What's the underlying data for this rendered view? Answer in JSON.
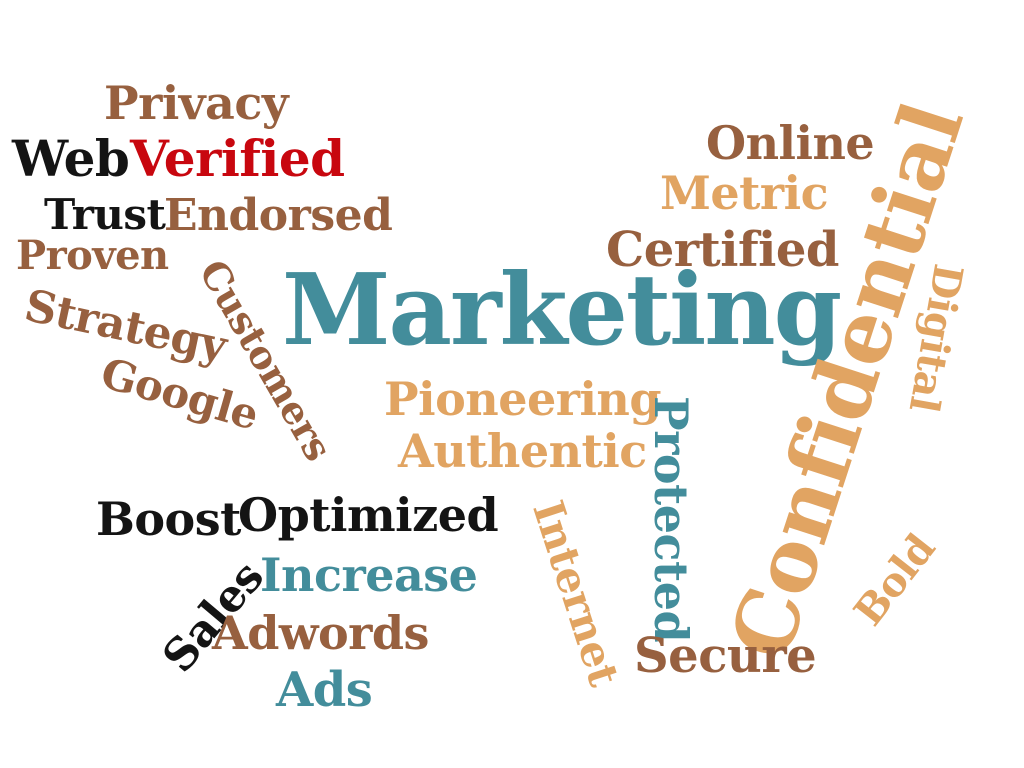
{
  "colors": {
    "brown": "#97603f",
    "black": "#141414",
    "red": "#c8070f",
    "teal": "#438d9b",
    "tan": "#e1a462",
    "background": "#ffffff"
  },
  "words": {
    "privacy": "Privacy",
    "web": "Web",
    "verified": "Verified",
    "trust": "Trust",
    "endorsed": "Endorsed",
    "proven": "Proven",
    "customers": "Customers",
    "strategy": "Strategy",
    "google": "Google",
    "marketing": "Marketing",
    "online": "Online",
    "metric": "Metric",
    "certified": "Certified",
    "confidential": "Confidential",
    "digital": "Digital",
    "pioneering": "Pioneering",
    "authentic": "Authentic",
    "protected": "Protected",
    "internet": "Internet",
    "bold": "Bold",
    "boost": "Boost",
    "optimized": "Optimized",
    "sales": "Sales",
    "increase": "Increase",
    "adwords": "Adwords",
    "ads": "Ads",
    "secure": "Secure"
  }
}
